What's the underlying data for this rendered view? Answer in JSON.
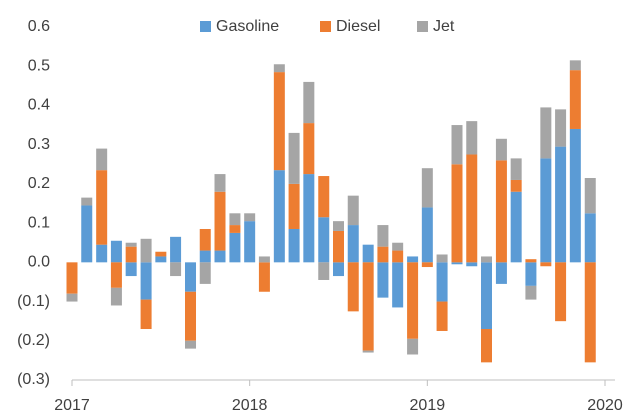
{
  "chart_data": {
    "type": "stacked-bar",
    "x": [
      2017,
      2017.083,
      2017.167,
      2017.25,
      2017.333,
      2017.417,
      2017.5,
      2017.583,
      2017.667,
      2017.75,
      2017.833,
      2017.917,
      2018,
      2018.083,
      2018.167,
      2018.25,
      2018.333,
      2018.417,
      2018.5,
      2018.583,
      2018.667,
      2018.75,
      2018.833,
      2018.917,
      2019,
      2019.083,
      2019.167,
      2019.25,
      2019.333,
      2019.417,
      2019.5,
      2019.583,
      2019.667,
      2019.75,
      2019.833,
      2019.917
    ],
    "series": [
      {
        "name": "Gasoline",
        "color": "#5b9bd5",
        "values": [
          0,
          0.145,
          0.045,
          0.055,
          -0.035,
          -0.095,
          0.015,
          0.065,
          -0.075,
          0.03,
          0.03,
          0.075,
          0.105,
          0,
          0.235,
          0.085,
          0.225,
          0.115,
          -0.035,
          0.095,
          0.045,
          -0.09,
          -0.115,
          0.015,
          0.14,
          -0.1,
          -0.005,
          -0.01,
          -0.17,
          -0.055,
          0.18,
          -0.06,
          0.265,
          0.295,
          0.34,
          0.125
        ]
      },
      {
        "name": "Diesel",
        "color": "#ed7d31",
        "values": [
          -0.08,
          0,
          0.19,
          -0.065,
          0.04,
          -0.075,
          0.012,
          0,
          -0.125,
          0.055,
          0.15,
          0.02,
          0,
          -0.075,
          0.25,
          0.115,
          0.13,
          0.105,
          0.08,
          -0.125,
          -0.225,
          0.04,
          0.03,
          -0.195,
          -0.012,
          -0.075,
          0.25,
          0.275,
          -0.085,
          0.26,
          0.03,
          0.008,
          -0.01,
          -0.15,
          0.15,
          -0.255
        ]
      },
      {
        "name": "Jet",
        "color": "#a5a5a5",
        "values": [
          -0.02,
          0.02,
          0.055,
          -0.045,
          0.01,
          0.06,
          0,
          -0.035,
          -0.02,
          -0.055,
          0.045,
          0.03,
          0.02,
          0.015,
          0.02,
          0.13,
          0.105,
          -0.045,
          0.025,
          0.075,
          -0.005,
          0.055,
          0.02,
          -0.04,
          0.1,
          0.02,
          0.1,
          0.085,
          0.015,
          0.055,
          0.055,
          -0.035,
          0.13,
          0.095,
          0.025,
          0.09
        ]
      }
    ],
    "xlim": [
      2017,
      2020
    ],
    "xticks": [
      2017,
      2018,
      2019,
      2020
    ],
    "ylim": [
      -0.3,
      0.6
    ],
    "yticks": [
      {
        "value": -0.3,
        "label": "(0.3)"
      },
      {
        "value": -0.2,
        "label": "(0.2)"
      },
      {
        "value": -0.1,
        "label": "(0.1)"
      },
      {
        "value": 0,
        "label": "0.0"
      },
      0.1,
      0.2,
      0.3,
      0.4,
      0.5,
      0.6
    ],
    "legend": "top"
  }
}
